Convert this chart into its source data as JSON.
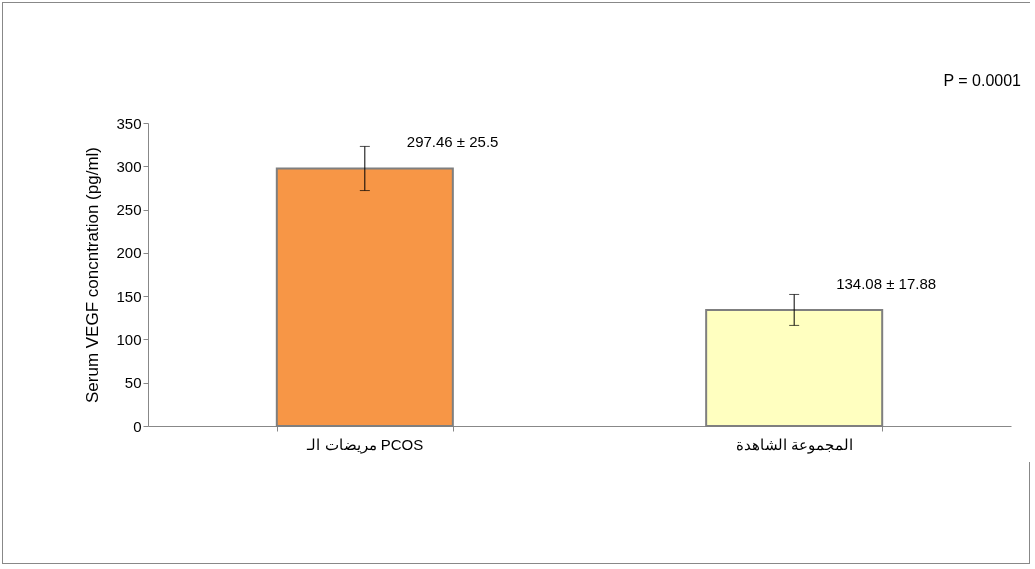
{
  "chart_data": {
    "type": "bar",
    "ylabel": "Serum VEGF concntration (pg/ml)",
    "categories": [
      "مريضات الـ PCOS",
      "المجموعة الشاهدة"
    ],
    "values": [
      297.46,
      134.08
    ],
    "errors": [
      25.5,
      17.88
    ],
    "value_labels": [
      "297.46 ± 25.5",
      "134.08 ± 17.88"
    ],
    "colors": [
      "#f79646",
      "#ffffc0"
    ],
    "ylim": [
      0,
      350
    ],
    "yticks": [
      0,
      50,
      100,
      150,
      200,
      250,
      300,
      350
    ],
    "grid": false,
    "legend": false,
    "annotations": [
      "P = 0.0001"
    ]
  }
}
